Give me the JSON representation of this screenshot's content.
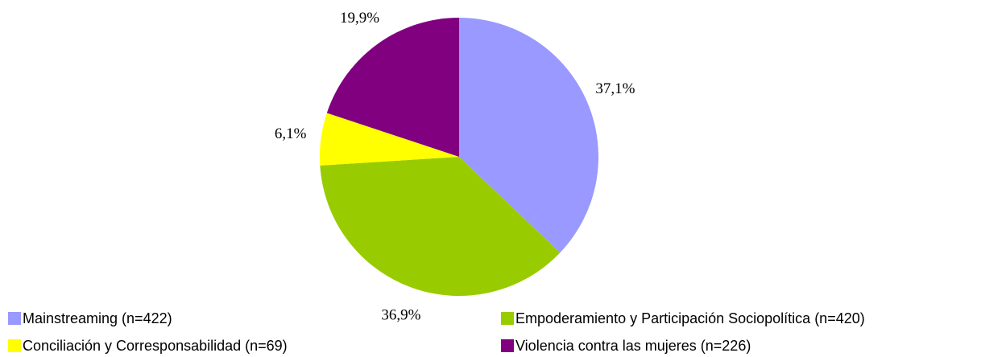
{
  "chart_data": {
    "type": "pie",
    "categories": [
      "Mainstreaming (n=422)",
      "Empoderamiento y Participación Sociopolítica (n=420)",
      "Conciliación y Corresponsabilidad (n=69)",
      "Violencia contra las mujeres (n=226)"
    ],
    "values": [
      37.1,
      36.9,
      6.1,
      19.9
    ],
    "value_labels": [
      "37,1%",
      "36,9%",
      "6,1%",
      "19,9%"
    ],
    "colors": [
      "#9999ff",
      "#99cc00",
      "#ffff00",
      "#800080"
    ],
    "legend": "bottom"
  }
}
